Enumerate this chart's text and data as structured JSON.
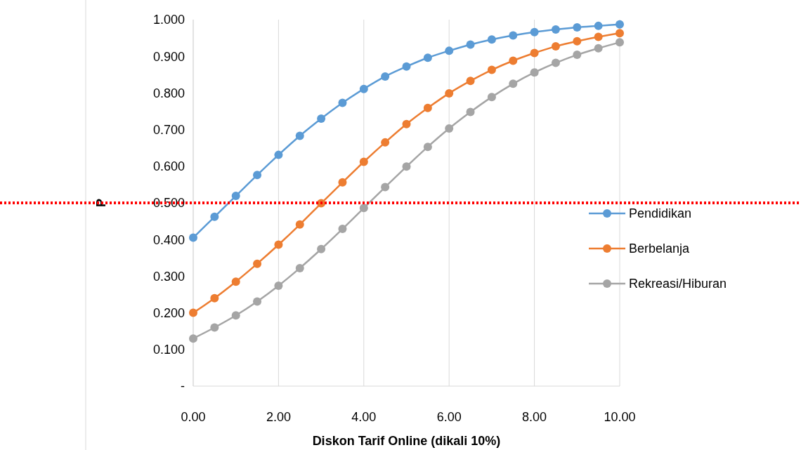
{
  "chart_data": {
    "type": "line",
    "xlabel": "Diskon Tarif Online (dikali 10%)",
    "ylabel": "P",
    "x": [
      0,
      0.5,
      1,
      1.5,
      2,
      2.5,
      3,
      3.5,
      4,
      4.5,
      5,
      5.5,
      6,
      6.5,
      7,
      7.5,
      8,
      8.5,
      9,
      9.5,
      10
    ],
    "series": [
      {
        "name": "Pendidikan",
        "color": "#5b9bd5",
        "values": [
          0.405,
          0.462,
          0.519,
          0.576,
          0.631,
          0.683,
          0.73,
          0.773,
          0.811,
          0.845,
          0.872,
          0.896,
          0.915,
          0.932,
          0.946,
          0.957,
          0.966,
          0.973,
          0.979,
          0.983,
          0.987
        ]
      },
      {
        "name": "Berbelanja",
        "color": "#ed7d31",
        "values": [
          0.2,
          0.24,
          0.285,
          0.334,
          0.386,
          0.441,
          0.499,
          0.556,
          0.612,
          0.665,
          0.715,
          0.759,
          0.799,
          0.833,
          0.863,
          0.888,
          0.909,
          0.927,
          0.941,
          0.953,
          0.963
        ]
      },
      {
        "name": "Rekreasi/Hiburan",
        "color": "#a5a5a5",
        "values": [
          0.13,
          0.16,
          0.193,
          0.231,
          0.274,
          0.322,
          0.374,
          0.429,
          0.486,
          0.543,
          0.599,
          0.653,
          0.703,
          0.748,
          0.789,
          0.825,
          0.856,
          0.882,
          0.904,
          0.922,
          0.938
        ]
      }
    ],
    "xlim": [
      0,
      10
    ],
    "xticks": [
      {
        "value": 0,
        "label": "0.00"
      },
      {
        "value": 2,
        "label": "2.00"
      },
      {
        "value": 4,
        "label": "4.00"
      },
      {
        "value": 6,
        "label": "6.00"
      },
      {
        "value": 8,
        "label": "8.00"
      },
      {
        "value": 10,
        "label": "10.00"
      }
    ],
    "ylim": [
      0,
      1
    ],
    "yticks": [
      {
        "value": 0,
        "label": "-"
      },
      {
        "value": 0.1,
        "label": "0.100"
      },
      {
        "value": 0.2,
        "label": "0.200"
      },
      {
        "value": 0.3,
        "label": "0.300"
      },
      {
        "value": 0.4,
        "label": "0.400"
      },
      {
        "value": 0.5,
        "label": "0.500"
      },
      {
        "value": 0.6,
        "label": "0.600"
      },
      {
        "value": 0.7,
        "label": "0.700"
      },
      {
        "value": 0.8,
        "label": "0.800"
      },
      {
        "value": 0.9,
        "label": "0.900"
      },
      {
        "value": 1,
        "label": "1.000"
      }
    ],
    "ref_lines": [
      {
        "axis": "y",
        "value": 0.5,
        "color": "#ff0000",
        "line_style": "dotted"
      }
    ],
    "grid": "x",
    "legend": "right",
    "marker": "circle",
    "line_style": "solid"
  }
}
